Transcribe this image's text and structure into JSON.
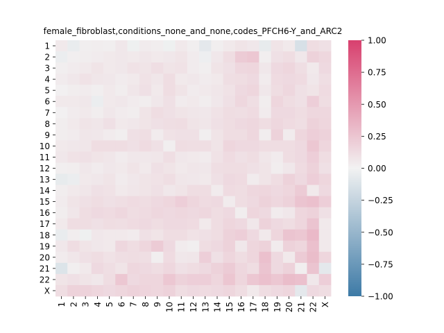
{
  "chart_data": {
    "type": "heatmap",
    "title": "female_fibroblast,conditions_none_and_none,codes_PFCH6-Y_and_ARC2",
    "xlabel": "",
    "ylabel": "",
    "row_labels": [
      "1",
      "2",
      "3",
      "4",
      "5",
      "6",
      "7",
      "8",
      "9",
      "10",
      "11",
      "12",
      "13",
      "14",
      "15",
      "16",
      "17",
      "18",
      "19",
      "20",
      "21",
      "22",
      "X"
    ],
    "col_labels": [
      "1",
      "2",
      "3",
      "4",
      "5",
      "6",
      "7",
      "8",
      "9",
      "10",
      "11",
      "12",
      "13",
      "14",
      "15",
      "16",
      "17",
      "18",
      "19",
      "20",
      "21",
      "22",
      "X"
    ],
    "values": [
      [
        0.05,
        -0.05,
        0.02,
        0.03,
        0.02,
        0.06,
        -0.02,
        0.04,
        0.03,
        -0.02,
        0.05,
        0.02,
        -0.08,
        0.02,
        0.05,
        0.08,
        0.06,
        -0.06,
        0.08,
        0.05,
        -0.15,
        0.12,
        0.1
      ],
      [
        -0.04,
        0.02,
        0.03,
        0.04,
        0.05,
        0.06,
        0.05,
        0.07,
        0.05,
        0.06,
        0.08,
        0.04,
        -0.03,
        0.06,
        0.12,
        0.22,
        0.24,
        0.02,
        0.1,
        0.12,
        0.06,
        0.18,
        0.15
      ],
      [
        0.02,
        0.04,
        0.05,
        0.08,
        0.05,
        0.06,
        0.09,
        0.08,
        0.11,
        0.08,
        0.09,
        0.04,
        0.02,
        0.08,
        0.1,
        0.15,
        0.16,
        0.06,
        0.14,
        0.16,
        0.11,
        0.05,
        0.14
      ],
      [
        0.04,
        0.06,
        0.09,
        0.07,
        0.06,
        0.04,
        0.05,
        0.09,
        0.07,
        0.12,
        0.05,
        0.06,
        0.04,
        0.05,
        0.11,
        0.12,
        0.14,
        0.04,
        0.13,
        0.14,
        0.13,
        0.06,
        0.11
      ],
      [
        0.01,
        0.03,
        0.04,
        0.02,
        0.05,
        0.03,
        0.07,
        0.1,
        0.05,
        0.12,
        0.08,
        0.04,
        0.05,
        0.07,
        0.09,
        0.14,
        0.16,
        0.06,
        0.12,
        0.15,
        0.1,
        0.08,
        0.13
      ],
      [
        0.05,
        0.05,
        0.06,
        -0.04,
        0.05,
        0.06,
        0.04,
        0.03,
        0.06,
        0.1,
        0.04,
        0.05,
        0.03,
        0.06,
        0.1,
        0.15,
        0.11,
        0.03,
        0.16,
        0.12,
        0.1,
        0.2,
        0.12
      ],
      [
        0.01,
        0.04,
        0.05,
        0.03,
        0.06,
        0.04,
        0.03,
        0.08,
        0.12,
        0.1,
        0.08,
        0.07,
        0.06,
        0.09,
        0.12,
        0.11,
        0.13,
        0.04,
        0.14,
        0.14,
        0.12,
        0.15,
        0.15
      ],
      [
        0.03,
        0.05,
        0.08,
        0.07,
        0.1,
        0.05,
        0.06,
        0.08,
        0.1,
        0.11,
        0.12,
        0.08,
        0.07,
        0.1,
        0.12,
        0.14,
        0.15,
        0.12,
        0.15,
        0.13,
        0.11,
        0.18,
        0.16
      ],
      [
        0.03,
        0.04,
        0.07,
        0.06,
        0.04,
        0.02,
        0.1,
        0.11,
        0.04,
        0.09,
        0.1,
        0.1,
        0.02,
        0.08,
        0.12,
        0.12,
        0.15,
        0.03,
        0.18,
        0.04,
        0.16,
        0.2,
        0.18
      ],
      [
        0.05,
        0.06,
        0.07,
        0.12,
        0.12,
        0.12,
        0.1,
        0.13,
        0.1,
        0.02,
        0.12,
        0.11,
        0.11,
        0.08,
        0.16,
        0.14,
        0.14,
        0.12,
        0.12,
        0.12,
        0.14,
        0.24,
        0.16
      ],
      [
        0.06,
        0.09,
        0.1,
        0.08,
        0.07,
        0.04,
        0.06,
        0.06,
        0.07,
        0.11,
        0.06,
        0.05,
        0.04,
        0.09,
        0.13,
        0.1,
        0.12,
        0.07,
        0.04,
        0.12,
        0.14,
        0.2,
        0.12
      ],
      [
        0.02,
        0.03,
        0.06,
        0.04,
        0.06,
        0.05,
        0.08,
        0.05,
        0.1,
        0.08,
        0.05,
        0.07,
        0.06,
        0.11,
        0.12,
        0.12,
        0.1,
        0.08,
        0.03,
        0.06,
        0.13,
        0.18,
        0.1
      ],
      [
        -0.06,
        -0.04,
        0.05,
        0.06,
        0.08,
        0.04,
        0.06,
        0.08,
        0.09,
        0.11,
        0.07,
        0.06,
        0.05,
        0.1,
        0.14,
        0.13,
        0.04,
        0.08,
        0.12,
        0.18,
        0.14,
        0.2,
        0.16
      ],
      [
        0.03,
        0.05,
        0.07,
        0.1,
        0.09,
        0.05,
        0.07,
        0.08,
        0.1,
        0.06,
        0.08,
        0.12,
        0.12,
        0.04,
        0.13,
        0.12,
        0.15,
        0.16,
        0.14,
        0.16,
        0.22,
        0.05,
        0.14
      ],
      [
        0.04,
        0.08,
        0.1,
        0.12,
        0.1,
        0.11,
        0.13,
        0.12,
        0.14,
        0.16,
        0.2,
        0.16,
        0.13,
        0.14,
        0.04,
        0.12,
        0.14,
        0.18,
        0.15,
        0.18,
        0.26,
        0.28,
        0.2
      ],
      [
        0.03,
        0.07,
        0.12,
        0.14,
        0.13,
        0.15,
        0.12,
        0.13,
        0.15,
        0.14,
        0.15,
        0.14,
        0.15,
        0.12,
        0.14,
        0.03,
        0.16,
        0.14,
        0.04,
        0.06,
        0.16,
        0.18,
        0.1
      ],
      [
        0.05,
        0.12,
        0.12,
        0.1,
        0.12,
        0.11,
        0.13,
        0.14,
        0.12,
        0.14,
        0.14,
        0.13,
        0.05,
        0.12,
        0.16,
        0.14,
        0.06,
        0.18,
        0.14,
        0.12,
        0.16,
        0.26,
        0.05
      ],
      [
        -0.05,
        0.03,
        -0.02,
        0.06,
        0.05,
        0.05,
        0.04,
        0.1,
        0.08,
        0.12,
        0.12,
        0.09,
        0.1,
        0.12,
        0.18,
        0.2,
        0.14,
        0.05,
        0.16,
        0.26,
        0.24,
        0.32,
        0.05
      ],
      [
        0.06,
        0.12,
        0.08,
        0.06,
        0.05,
        0.15,
        0.12,
        0.16,
        0.22,
        0.14,
        0.04,
        0.02,
        0.12,
        0.14,
        0.18,
        0.06,
        0.16,
        0.18,
        0.04,
        0.18,
        0.16,
        0.28,
        0.05
      ],
      [
        0.04,
        0.07,
        0.1,
        0.12,
        0.09,
        0.11,
        0.12,
        0.11,
        0.02,
        0.13,
        0.06,
        0.07,
        0.2,
        0.1,
        0.16,
        0.12,
        0.16,
        0.28,
        0.14,
        0.05,
        0.22,
        0.3,
        0.16
      ],
      [
        -0.12,
        0.02,
        0.05,
        0.14,
        0.11,
        0.08,
        0.15,
        0.14,
        0.12,
        0.15,
        0.1,
        0.12,
        0.14,
        0.18,
        0.22,
        0.15,
        0.12,
        0.26,
        0.14,
        0.18,
        0.02,
        0.26,
        -0.08
      ],
      [
        0.08,
        0.1,
        0.08,
        0.06,
        0.12,
        0.24,
        0.14,
        0.16,
        0.16,
        0.24,
        0.18,
        0.2,
        0.2,
        0.16,
        0.25,
        0.16,
        0.24,
        0.28,
        0.24,
        0.3,
        0.28,
        0.06,
        0.2
      ],
      [
        0.12,
        0.18,
        0.18,
        0.16,
        0.14,
        0.16,
        0.18,
        0.17,
        0.16,
        0.18,
        0.12,
        0.14,
        0.13,
        0.14,
        0.16,
        0.12,
        0.05,
        0.12,
        0.14,
        0.16,
        -0.08,
        0.14,
        0.12
      ]
    ],
    "vmin": -1.0,
    "vmax": 1.0,
    "colormap": {
      "low": "#3d7aa6",
      "mid": "#f2f2f2",
      "high": "#d8406e"
    },
    "colorbar_ticks": [
      "1.00",
      "0.75",
      "0.50",
      "0.25",
      "0.00",
      "−0.25",
      "−0.50",
      "−0.75",
      "−1.00"
    ],
    "colorbar_tick_values": [
      1.0,
      0.75,
      0.5,
      0.25,
      0.0,
      -0.25,
      -0.5,
      -0.75,
      -1.0
    ],
    "grid": false,
    "legend": "colorbar-right"
  }
}
